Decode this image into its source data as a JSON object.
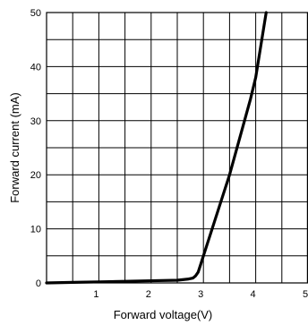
{
  "chart_data": {
    "type": "line",
    "title": "",
    "xlabel": "Forward voltage(V)",
    "ylabel": "Forward current (mA)",
    "xlim": [
      0,
      5
    ],
    "ylim": [
      0,
      50
    ],
    "grid": true,
    "x_major_ticks": [
      0,
      1,
      2,
      3,
      4,
      5
    ],
    "x_minor_step": 0.5,
    "y_major_ticks": [
      0,
      10,
      20,
      30,
      40,
      50
    ],
    "y_minor_step": 5,
    "x_tick_labels": [
      "1",
      "2",
      "3",
      "4",
      "5"
    ],
    "y_tick_labels": [
      "0",
      "10",
      "20",
      "30",
      "40",
      "50"
    ],
    "series": [
      {
        "x": [
          0.0,
          0.5,
          1.0,
          1.5,
          2.0,
          2.5,
          2.7,
          2.8,
          2.85,
          2.9,
          2.95,
          3.0,
          3.1,
          3.2,
          3.3,
          3.4,
          3.5,
          3.6,
          3.7,
          3.8,
          3.9,
          4.0,
          4.1,
          4.2
        ],
        "y": [
          0.0,
          0.1,
          0.2,
          0.3,
          0.4,
          0.5,
          0.7,
          0.9,
          1.3,
          2.0,
          3.5,
          5.0,
          8.0,
          11.0,
          14.0,
          17.0,
          20.0,
          23.5,
          27.0,
          30.5,
          34.0,
          38.0,
          44.0,
          50.0
        ]
      }
    ]
  }
}
